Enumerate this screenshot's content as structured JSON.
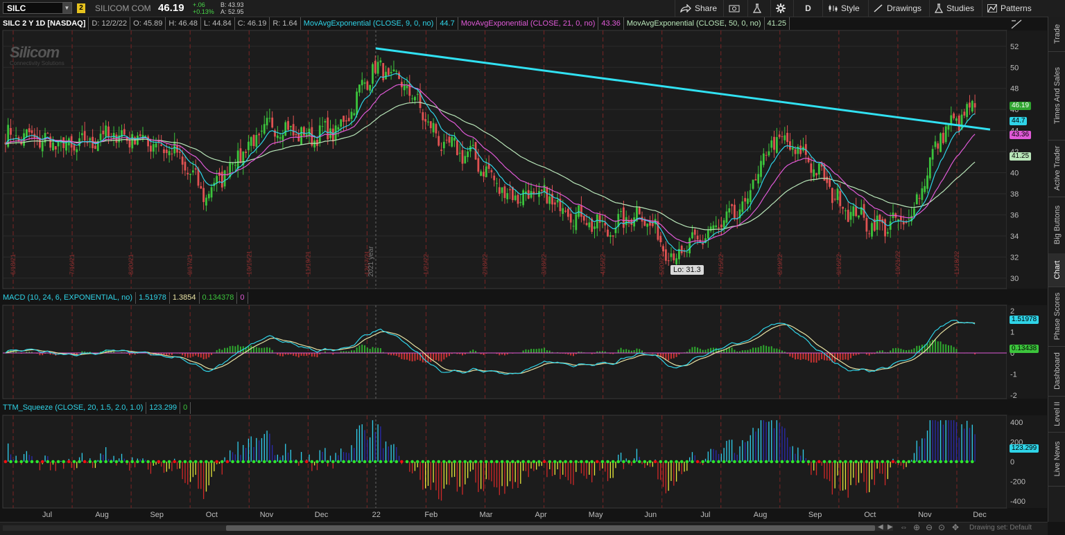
{
  "app": {
    "symbol": "SILC",
    "link_group": "2",
    "company": "SILICOM COM",
    "last": "46.19",
    "net_change": "+.06",
    "pct_change": "+0.13%",
    "bid": "B: 43.93",
    "ask": "A: 52.95"
  },
  "toolbar": {
    "share": "Share",
    "aggregation": "D",
    "style": "Style",
    "drawings": "Drawings",
    "studies": "Studies",
    "patterns": "Patterns"
  },
  "infobar": {
    "title": "SILC 2 Y 1D [NASDAQ]",
    "date": "D: 12/2/22",
    "open": "O: 45.89",
    "high": "H: 46.48",
    "low": "L: 44.84",
    "close": "C: 46.19",
    "range": "R: 1.64",
    "ema9_label": "MovAvgExponential (CLOSE, 9, 0, no)",
    "ema9_val": "44.7",
    "ema21_label": "MovAvgExponential (CLOSE, 21, 0, no)",
    "ema21_val": "43.36",
    "ema50_label": "MovAvgExponential (CLOSE, 50, 0, no)",
    "ema50_val": "41.25"
  },
  "price_pane": {
    "watermark_title": "Silicom",
    "watermark_sub": "Connectivity Solutions",
    "year_label": "2021 year",
    "low_label": "Lo: 31.3",
    "y_ticks": [
      "52",
      "50",
      "48",
      "46",
      "44",
      "42",
      "40",
      "38",
      "36",
      "34",
      "32",
      "30"
    ],
    "date_markers": [
      "6/18/21",
      "7/16/21",
      "8/20/21",
      "9/17/21",
      "10/15/21",
      "11/19/21",
      "12/17/21",
      "1/21/22",
      "2/18/22",
      "3/18/22",
      "4/15/22",
      "5/20/22",
      "7/15/22",
      "8/19/22",
      "9/16/22",
      "10/21/22",
      "11/18/22"
    ],
    "badges": {
      "last": "46.19",
      "ema9": "44.7",
      "ema21": "43.36",
      "ema50": "41.25"
    }
  },
  "macd": {
    "label": "MACD (10, 24, 6, EXPONENTIAL, no)",
    "value": "1.51978",
    "avg": "1.3854",
    "diff": "0.134378",
    "zeroline": "0",
    "y_ticks": [
      "2",
      "1",
      "0",
      "-1",
      "-2"
    ],
    "badge_value": "1.51978",
    "badge_diff": "0.13438"
  },
  "ttm": {
    "label": "TTM_Squeeze (CLOSE, 20, 1.5, 2.0, 1.0)",
    "value": "123.299",
    "alert": "0",
    "y_ticks": [
      "400",
      "200",
      "0",
      "-200",
      "-400"
    ],
    "badge": "123.299"
  },
  "x_axis": [
    "Jul",
    "Aug",
    "Sep",
    "Oct",
    "Nov",
    "Dec",
    "22",
    "Feb",
    "Mar",
    "Apr",
    "May",
    "Jun",
    "Jul",
    "Aug",
    "Sep",
    "Oct",
    "Nov",
    "Dec"
  ],
  "right_tabs": [
    "Trade",
    "Times And Sales",
    "Active Trader",
    "Big Buttons",
    "Chart",
    "Phase Scores",
    "Dashboard",
    "Level II",
    "Live News"
  ],
  "status": {
    "drawing_set": "Drawing set: Default"
  },
  "colors": {
    "up": "#3cc43c",
    "down": "#e05252",
    "ema9": "#2fd4e8",
    "ema21": "#e05ad8",
    "ema50": "#b9e6b9",
    "trendline": "#31e1f2",
    "macd_line": "#2fd4e8",
    "macd_avg": "#e9e3a4",
    "hist_pos": "#2faa2f",
    "hist_neg": "#c33",
    "squeeze_on": "#e11",
    "squeeze_off": "#2ee52e"
  },
  "chart_data": {
    "type": "candlestick",
    "ylim": [
      29,
      53.5
    ],
    "x": [
      "Jun '21",
      "Jul",
      "Aug",
      "Sep",
      "Oct",
      "Nov",
      "Dec",
      "Jan '22",
      "Feb",
      "Mar",
      "Apr",
      "May",
      "Jun",
      "Jul",
      "Aug",
      "Sep",
      "Oct",
      "Nov",
      "Dec"
    ],
    "close_path": [
      43.5,
      43.2,
      42.3,
      43.6,
      43.3,
      42.1,
      37.8,
      41.8,
      44.6,
      43.4,
      44.1,
      50.0,
      48.2,
      42.8,
      41.5,
      37.9,
      37.8,
      36.2,
      34.5,
      36.3,
      31.8,
      34.2,
      36.3,
      43.3,
      41.4,
      37.0,
      34.9,
      35.3,
      43.8,
      46.19
    ],
    "ema9_last": 44.7,
    "ema21_last": 43.36,
    "ema50_last": 41.25,
    "trendline": {
      "from": [
        "Jan '22",
        51.8
      ],
      "to": [
        "Dec '22",
        44.1
      ]
    },
    "low": 31.3
  }
}
